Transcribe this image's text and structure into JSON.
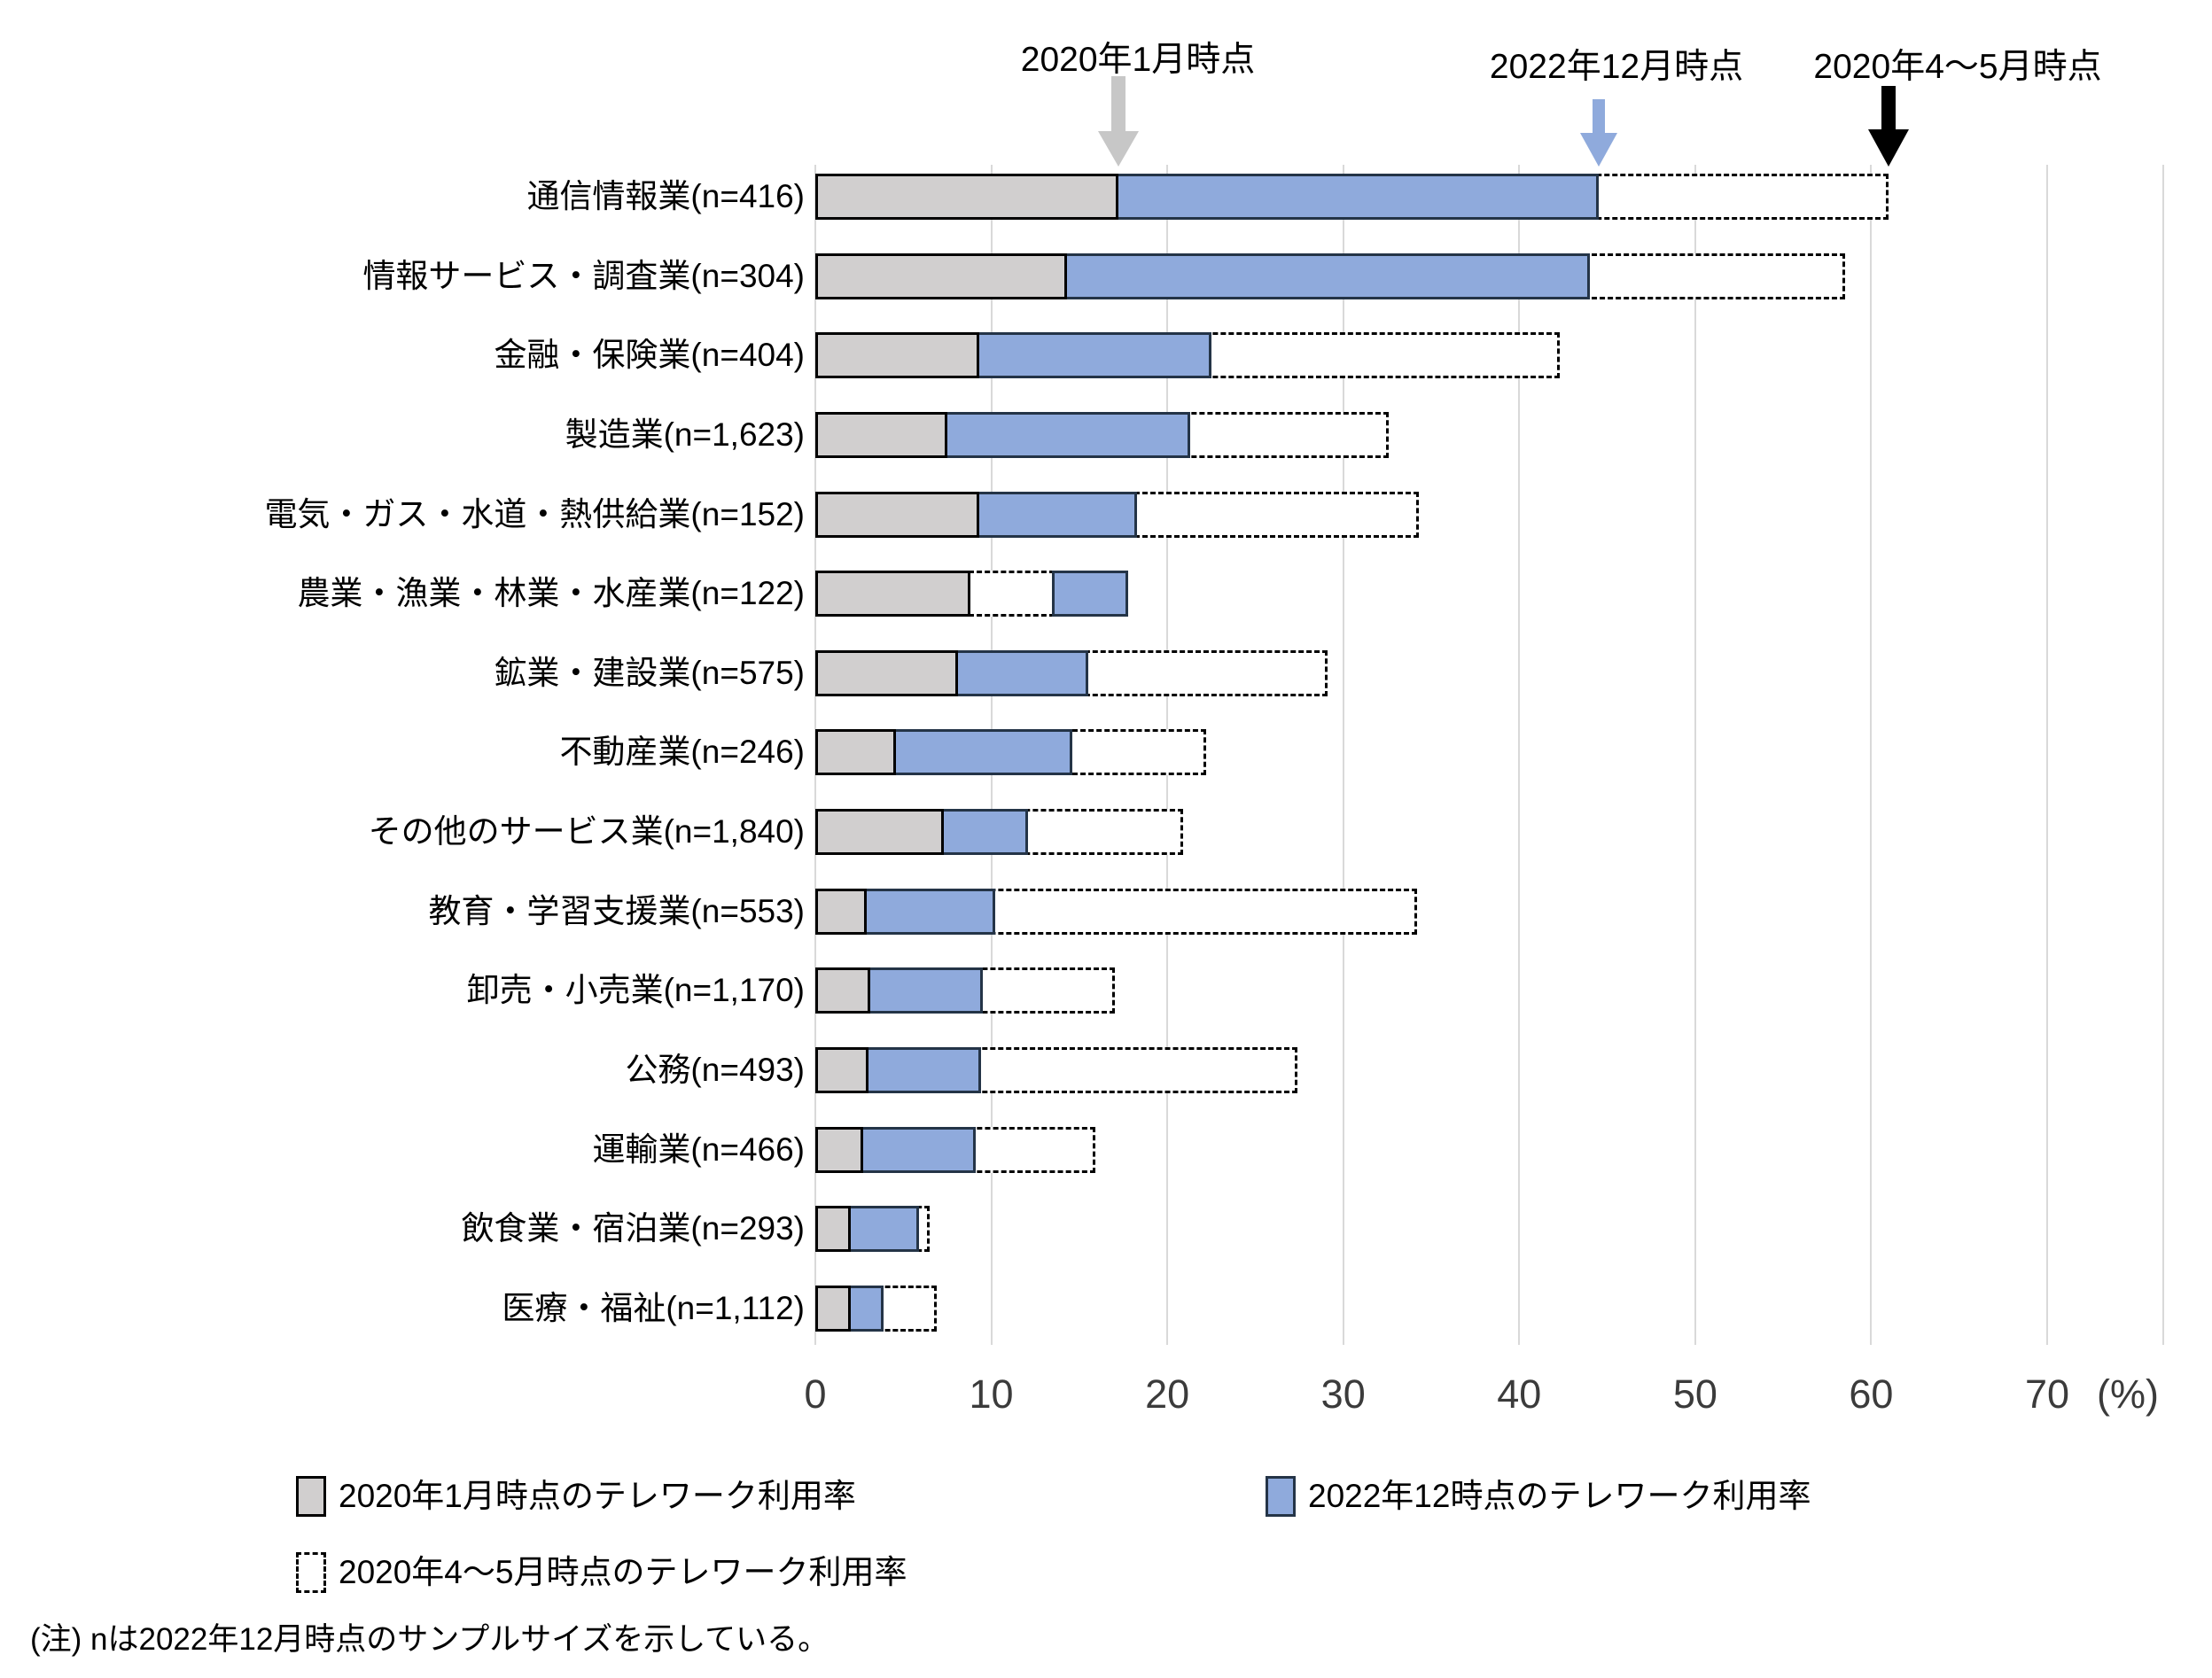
{
  "chart_data": {
    "type": "bar",
    "orientation": "horizontal",
    "title": "",
    "xlabel_unit": "(%)",
    "xlim": [
      0,
      70
    ],
    "x_ticks": [
      "0",
      "10",
      "20",
      "30",
      "40",
      "50",
      "60",
      "70"
    ],
    "grid": true,
    "categories": [
      "通信情報業(n=416)",
      "情報サービス・調査業(n=304)",
      "金融・保険業(n=404)",
      "製造業(n=1,623)",
      "電気・ガス・水道・熱供給業(n=152)",
      "農業・漁業・林業・水産業(n=122)",
      "鉱業・建設業(n=575)",
      "不動産業(n=246)",
      "その他のサービス業(n=1,840)",
      "教育・学習支援業(n=553)",
      "卸売・小売業(n=1,170)",
      "公務(n=493)",
      "運輸業(n=466)",
      "飲食業・宿泊業(n=293)",
      "医療・福祉(n=1,112)"
    ],
    "series": [
      {
        "name": "2020年1月時点のテレワーク利用率",
        "style": "solid",
        "fill": "#d1cfcf",
        "border": "#000000",
        "values": [
          17.2,
          14.3,
          9.3,
          7.5,
          9.3,
          8.8,
          8.1,
          4.6,
          7.3,
          2.9,
          3.1,
          3.0,
          2.7,
          2.0,
          2.0
        ]
      },
      {
        "name": "2022年12時点のテレワーク利用率",
        "style": "solid",
        "fill": "#8faadc",
        "border": "#243447",
        "values": [
          44.5,
          44.0,
          22.5,
          21.3,
          18.3,
          17.8,
          15.5,
          14.6,
          12.1,
          10.2,
          9.5,
          9.4,
          9.1,
          5.9,
          3.9
        ]
      },
      {
        "name": "2020年4〜5月時点のテレワーク利用率",
        "style": "dashed",
        "fill": "#ffffff",
        "border": "#000000",
        "values": [
          61.0,
          58.5,
          42.3,
          32.6,
          34.3,
          13.6,
          29.1,
          22.2,
          20.9,
          34.2,
          17.0,
          27.4,
          15.9,
          6.5,
          6.9
        ]
      }
    ],
    "annotations": [
      {
        "label": "2020年1月時点",
        "x": 17.2,
        "arrow_color": "#c7c7c7"
      },
      {
        "label": "2022年12月時点",
        "x": 44.5,
        "arrow_color": "#8faadc"
      },
      {
        "label": "2020年4〜5月時点",
        "x": 61.0,
        "arrow_color": "#000000"
      }
    ],
    "legend_position": "bottom",
    "note": "(注) nは2022年12月時点のサンプルサイズを示している。",
    "colors": {
      "gridline": "#d9d9d9",
      "axis_text": "#3b3b3b"
    }
  }
}
